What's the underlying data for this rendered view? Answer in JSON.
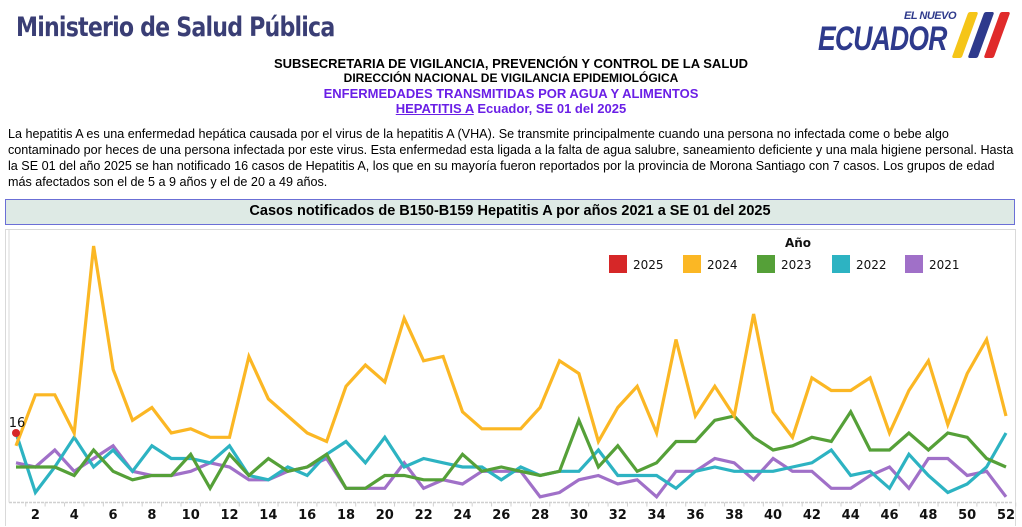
{
  "header": {
    "ministry": "Ministerio de Salud Pública",
    "logo_small": "EL NUEVO",
    "logo_big": "ECUADOR",
    "logo_colors": [
      "#f5c518",
      "#2e3a8c",
      "#e02b2b"
    ],
    "line1": "SUBSECRETARIA DE VIGILANCIA, PREVENCIÓN Y CONTROL DE LA SALUD",
    "line2": "DIRECCIÓN NACIONAL DE VIGILANCIA EPIDEMIOLÓGICA",
    "line3": "ENFERMEDADES TRANSMITIDAS POR AGUA Y ALIMENTOS",
    "line4_underlined": "HEPATITIS A",
    "line4_rest": " Ecuador, SE 01 del 2025"
  },
  "paragraph": "La hepatitis A es una enfermedad hepática causada por el virus de la hepatitis A (VHA). Se transmite principalmente cuando una persona no infectada come o bebe algo contaminado por heces de una persona infectada por este virus. Esta enfermedad esta ligada a la falta de agua salubre, saneamiento deficiente y una mala higiene personal. Hasta la SE 01 del año 2025  se han notificado 16 casos de Hepatitis A, los que en su mayoría fueron reportados por la provincia de Morona Santiago con 7 casos. Los grupos de edad más afectados son el de 5 a 9 años y el de 20 a 49 años.",
  "chart_data": {
    "type": "line",
    "title": "Casos notificados de B150-B159 Hepatitis A por años 2021 a SE 01 del 2025",
    "xlabel": "",
    "ylabel": "",
    "x": [
      1,
      2,
      3,
      4,
      5,
      6,
      7,
      8,
      9,
      10,
      11,
      12,
      13,
      14,
      15,
      16,
      17,
      18,
      19,
      20,
      21,
      22,
      23,
      24,
      25,
      26,
      27,
      28,
      29,
      30,
      31,
      32,
      33,
      34,
      35,
      36,
      37,
      38,
      39,
      40,
      41,
      42,
      43,
      44,
      45,
      46,
      47,
      48,
      49,
      50,
      51,
      52
    ],
    "x_tick_labels": [
      "2",
      "4",
      "6",
      "8",
      "10",
      "12",
      "14",
      "16",
      "18",
      "20",
      "22",
      "24",
      "26",
      "28",
      "30",
      "32",
      "34",
      "36",
      "38",
      "40",
      "42",
      "44",
      "46",
      "48",
      "50",
      "52"
    ],
    "ylim": [
      0,
      62
    ],
    "grid": false,
    "legend": {
      "title": "Año",
      "placement": "top-right"
    },
    "series": [
      {
        "name": "2025",
        "color": "#d62728",
        "values": [
          16
        ],
        "labels": [
          "16"
        ]
      },
      {
        "name": "2024",
        "color": "#fbb724",
        "values": [
          13,
          25,
          25,
          16,
          60,
          31,
          19,
          22,
          16,
          17,
          15,
          15,
          34,
          24,
          20,
          16,
          14,
          27,
          32,
          28,
          43,
          33,
          34,
          21,
          17,
          17,
          17,
          22,
          33,
          30,
          14,
          22,
          27,
          16,
          38,
          20,
          27,
          20,
          44,
          21,
          15,
          29,
          26,
          26,
          29,
          16,
          26,
          33,
          18,
          30,
          38,
          20
        ]
      },
      {
        "name": "2023",
        "color": "#55a038",
        "values": [
          8,
          8,
          8,
          6,
          12,
          7,
          5,
          6,
          6,
          11,
          3,
          11,
          6,
          10,
          7,
          8,
          11,
          3,
          3,
          6,
          6,
          5,
          5,
          11,
          7,
          8,
          7,
          6,
          7,
          19,
          8,
          13,
          7,
          9,
          14,
          14,
          19,
          20,
          15,
          12,
          13,
          15,
          14,
          21,
          12,
          12,
          16,
          12,
          16,
          15,
          10,
          8
        ]
      },
      {
        "name": "2022",
        "color": "#2db3c2",
        "values": [
          16,
          2,
          8,
          15,
          8,
          12,
          7,
          13,
          10,
          10,
          9,
          13,
          6,
          5,
          8,
          6,
          11,
          14,
          9,
          15,
          8,
          10,
          9,
          8,
          8,
          5,
          8,
          6,
          7,
          7,
          12,
          6,
          6,
          6,
          3,
          7,
          8,
          7,
          7,
          7,
          8,
          9,
          12,
          6,
          7,
          3,
          11,
          6,
          2,
          4,
          8,
          16
        ]
      },
      {
        "name": "2021",
        "color": "#a070c8",
        "values": [
          9,
          8,
          12,
          7,
          10,
          13,
          7,
          6,
          6,
          7,
          9,
          8,
          5,
          5,
          7,
          8,
          10,
          3,
          3,
          3,
          9,
          3,
          5,
          4,
          7,
          7,
          7,
          1,
          2,
          5,
          6,
          4,
          5,
          1,
          7,
          7,
          10,
          9,
          5,
          10,
          7,
          7,
          3,
          3,
          6,
          8,
          3,
          10,
          10,
          6,
          7,
          1
        ]
      }
    ]
  }
}
